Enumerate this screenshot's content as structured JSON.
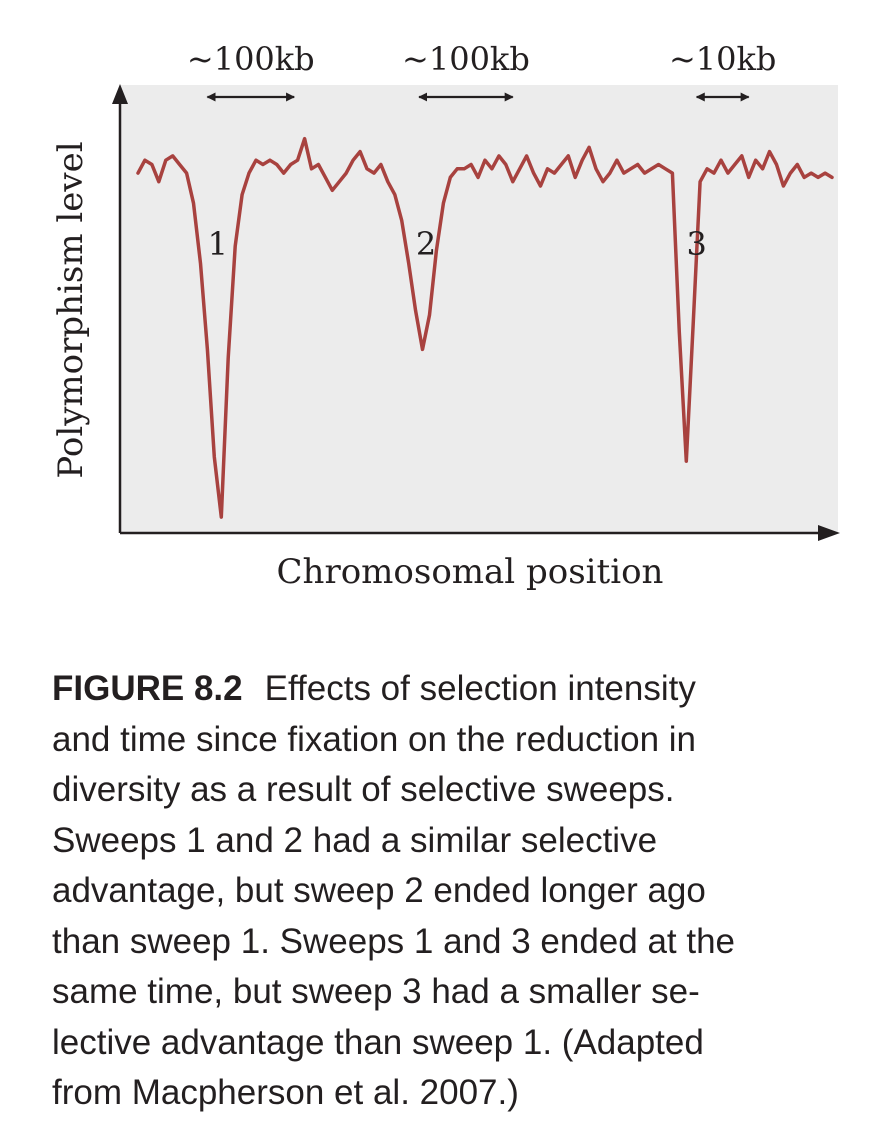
{
  "chart_data": {
    "type": "line",
    "title": "",
    "xlabel": "Chromosomal position",
    "ylabel": "Polymorphism level",
    "xlim": [
      0,
      100
    ],
    "ylim": [
      0,
      100
    ],
    "grid": false,
    "colors": {
      "line": "#a8423f",
      "plot_background": "#ececec",
      "axis": "#231f20"
    },
    "series": [
      {
        "name": "Polymorphism level",
        "x": [
          0,
          1,
          2,
          3,
          4,
          5,
          6,
          7,
          8,
          9,
          10,
          11,
          12,
          13,
          14,
          15,
          16,
          17,
          18,
          19,
          20,
          21,
          22,
          23,
          24,
          25,
          26,
          27,
          28,
          29,
          30,
          31,
          32,
          33,
          34,
          35,
          36,
          37,
          38,
          39,
          40,
          41,
          42,
          43,
          44,
          45,
          46,
          47,
          48,
          49,
          50,
          51,
          52,
          53,
          54,
          55,
          56,
          57,
          58,
          59,
          60,
          61,
          62,
          63,
          64,
          65,
          66,
          67,
          68,
          69,
          70,
          71,
          72,
          73,
          74,
          75,
          76,
          77,
          78,
          79,
          80,
          81,
          82,
          83,
          84,
          85,
          86,
          87,
          88,
          89,
          90,
          91,
          92,
          93,
          94,
          95,
          96,
          97,
          98,
          99,
          100
        ],
        "values": [
          83,
          86,
          85,
          81,
          86,
          87,
          85,
          83,
          76,
          62,
          42,
          17,
          3,
          40,
          66,
          78,
          83,
          86,
          85,
          86,
          85,
          83,
          85,
          86,
          91,
          84,
          85,
          82,
          79,
          81,
          83,
          86,
          88,
          84,
          83,
          85,
          81,
          78,
          72,
          62,
          51,
          42,
          50,
          65,
          76,
          82,
          84,
          84,
          85,
          82,
          86,
          84,
          87,
          85,
          81,
          84,
          87,
          83,
          80,
          84,
          83,
          85,
          87,
          82,
          86,
          89,
          84,
          81,
          83,
          86,
          83,
          84,
          85,
          83,
          84,
          85,
          84,
          83,
          46,
          16,
          48,
          81,
          84,
          83,
          86,
          83,
          85,
          87,
          82,
          86,
          84,
          88,
          85,
          80,
          83,
          85,
          82,
          83,
          82,
          83,
          82
        ]
      }
    ],
    "annotations": [
      {
        "name": "sweep-1",
        "text": "1",
        "x": 11.5,
        "y": 64
      },
      {
        "name": "sweep-2",
        "text": "2",
        "x": 41.5,
        "y": 64
      },
      {
        "name": "sweep-3",
        "text": "3",
        "x": 80.5,
        "y": 64
      }
    ],
    "width_markers": [
      {
        "name": "sweep-1-width",
        "text": "~100kb",
        "x_start": 10,
        "x_end": 22.5
      },
      {
        "name": "sweep-2-width",
        "text": "~100kb",
        "x_start": 40.5,
        "x_end": 54
      },
      {
        "name": "sweep-3-width",
        "text": "~10kb",
        "x_start": 80.5,
        "x_end": 88
      }
    ]
  },
  "caption": {
    "label": "FIGURE 8.2",
    "lines": [
      "Effects of selection intensity",
      "and time since fixation on the reduction in",
      "diversity as a result of selective sweeps.",
      "Sweeps 1 and 2 had a similar selective",
      "advantage, but sweep 2 ended longer ago",
      "than sweep 1. Sweeps 1 and 3 ended at the",
      "same time, but sweep 3 had a smaller se-",
      "lective advantage than sweep 1. (Adapted",
      "from Macpherson et al. 2007.)"
    ]
  }
}
